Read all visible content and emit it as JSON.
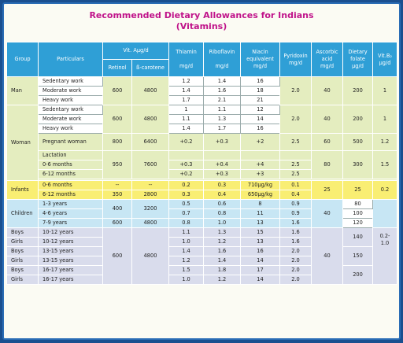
{
  "title": {
    "line1": "Recommended Dietary Allowances for Indians",
    "line2": "(Vitamins)"
  },
  "headers": {
    "group": "Group",
    "particulars": "Particulars",
    "vita": "Vit. Aµg/d",
    "retinol": "Retinol",
    "carotene": "ß-carotene",
    "thiamin": "Thiamin",
    "thiamin_unit": "mg/d",
    "riboflavin": "Riboflavin",
    "riboflavin_unit": "mg/d",
    "niacin1": "Niacin",
    "niacin2": "equivalent",
    "niacin_unit": "mg/d",
    "pyridoxin": "Pyridoxin",
    "pyridoxin_unit": "mg/d",
    "ascorbic1": "Ascorbic",
    "ascorbic2": "acid",
    "ascorbic_unit": "mg/d",
    "folate1": "Dietary",
    "folate2": "folate",
    "folate_unit": "µg/d",
    "b12": "Vit.B₂",
    "b12_unit": "µg/d"
  },
  "man": {
    "group": "Man",
    "p1": "Sedentary work",
    "p2": "Moderate work",
    "p3": "Heavy work",
    "retinol": "600",
    "carotene": "4800",
    "thiamin": [
      "1.2",
      "1.4",
      "1.7"
    ],
    "riboflavin": [
      "1.4",
      "1.6",
      "2.1"
    ],
    "niacin": [
      "16",
      "18",
      "21"
    ],
    "pyridoxin": "2.0",
    "ascorbic": "40",
    "folate": "200",
    "b12": "1"
  },
  "woman": {
    "group": "Woman",
    "p1": "Sedentary work",
    "p2": "Moderate work",
    "p3": "Heavy work",
    "retinol": "600",
    "carotene": "4800",
    "thiamin": [
      "1",
      "1.1",
      "1.4"
    ],
    "riboflavin": [
      "1.1",
      "1.3",
      "1.7"
    ],
    "niacin": [
      "12",
      "14",
      "16"
    ],
    "pyridoxin": "2.0",
    "ascorbic": "40",
    "folate": "200",
    "b12": "1",
    "preg": {
      "label": "Pregnant woman",
      "retinol": "800",
      "carotene": "6400",
      "thiamin": "+0.2",
      "riboflavin": "+0.3",
      "niacin": "+2",
      "pyridoxin": "2.5",
      "ascorbic": "60",
      "folate": "500",
      "b12": "1.2"
    },
    "lact": {
      "label": "Lactation",
      "l1": "0-6 months",
      "l2": "6-12 months",
      "retinol": "950",
      "carotene": "7600",
      "thiamin": [
        "+0.3",
        "+0.2"
      ],
      "riboflavin": [
        "+0.4",
        "+0.3"
      ],
      "niacin": [
        "+4",
        "+3"
      ],
      "pyridoxin": [
        "2.5",
        "2.5"
      ],
      "ascorbic": "80",
      "folate": "300",
      "b12": "1.5"
    }
  },
  "infants": {
    "group": "Infants",
    "p1": "0-6 months",
    "p2": "6-12 months",
    "retinol": [
      "--",
      "350"
    ],
    "carotene": [
      "--",
      "2800"
    ],
    "thiamin": [
      "0.2",
      "0.3"
    ],
    "riboflavin": [
      "0.3",
      "0.4"
    ],
    "niacin": [
      "710µg/kg",
      "650µg/kg"
    ],
    "pyridoxin": [
      "0.1",
      "0.4"
    ],
    "ascorbic": "25",
    "folate": "25",
    "b12": "0.2"
  },
  "children": {
    "group": "Children",
    "p1": "1-3 years",
    "p2": "4-6 years",
    "p3": "7-9 years",
    "retinol_a": "400",
    "carotene_a": "3200",
    "retinol_b": "600",
    "carotene_b": "4800",
    "thiamin": [
      "0.5",
      "0.7",
      "0.8"
    ],
    "riboflavin": [
      "0.6",
      "0.8",
      "1.0"
    ],
    "niacin": [
      "8",
      "11",
      "13"
    ],
    "pyridoxin": [
      "0.9",
      "0.9",
      "1.6"
    ],
    "ascorbic": "40",
    "folate": [
      "80",
      "100",
      "120"
    ]
  },
  "adolescents": {
    "rows": [
      {
        "g": "Boys",
        "p": "10-12 years",
        "t": "1.1",
        "r": "1.3",
        "n": "15",
        "py": "1.6"
      },
      {
        "g": "Girls",
        "p": "10-12 years",
        "t": "1.0",
        "r": "1.2",
        "n": "13",
        "py": "1.6"
      },
      {
        "g": "Boys",
        "p": "13-15 years",
        "t": "1.4",
        "r": "1.6",
        "n": "16",
        "py": "2.0"
      },
      {
        "g": "Girls",
        "p": "13-15 years",
        "t": "1.2",
        "r": "1.4",
        "n": "14",
        "py": "2.0"
      },
      {
        "g": "Boys",
        "p": "16-17 years",
        "t": "1.5",
        "r": "1.8",
        "n": "17",
        "py": "2.0"
      },
      {
        "g": "Girls",
        "p": "16-17 years",
        "t": "1.0",
        "r": "1.2",
        "n": "14",
        "py": "2.0"
      }
    ],
    "retinol": "600",
    "carotene": "4800",
    "ascorbic": "40",
    "folate": [
      "140",
      "150",
      "200"
    ],
    "b12_a": "0.2-",
    "b12_b": "1.0"
  }
}
